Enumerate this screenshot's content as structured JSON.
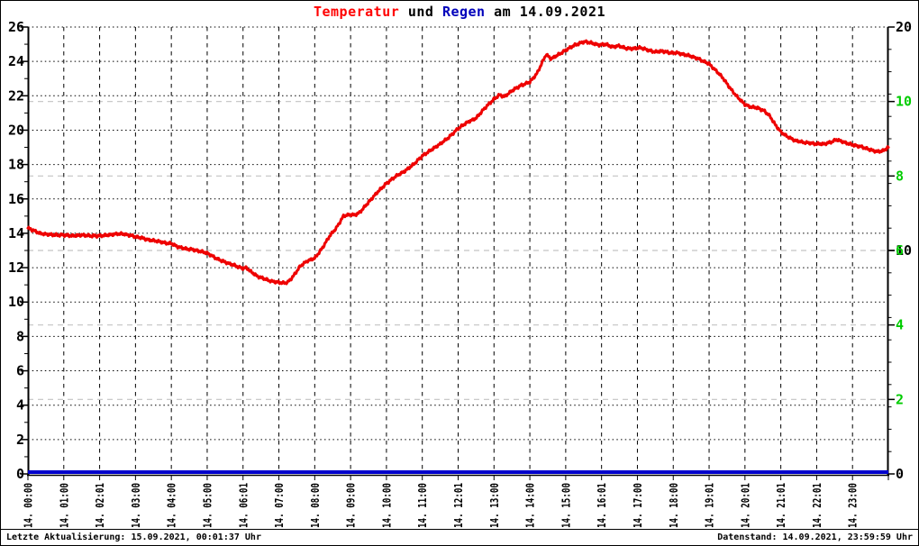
{
  "title": {
    "part_temperatur": "Temperatur",
    "part_und": "und",
    "part_regen": "Regen",
    "part_date": "am 14.09.2021"
  },
  "footer": {
    "last_update": "Letzte Aktualisierung: 15.09.2021, 00:01:37 Uhr",
    "data_state": "Datenstand: 14.09.2021, 23:59:59 Uhr"
  },
  "colors": {
    "temperature_line": "#ee0000",
    "rain_line": "#0000cc",
    "title_red": "#ff0000",
    "title_blue": "#0000bb",
    "green_axis_text": "#00cc00",
    "axis_black": "#000000",
    "grid_gray": "#c3c3c3",
    "background": "#ffffff"
  },
  "chart_data": {
    "type": "line",
    "title": "Temperatur und Regen am 14.09.2021",
    "grid": true,
    "x_axis": {
      "range_hours": [
        0,
        24
      ],
      "tick_labels": [
        "14. 00:00",
        "14. 01:00",
        "14. 02:01",
        "14. 03:00",
        "14. 04:00",
        "14. 05:00",
        "14. 06:01",
        "14. 07:00",
        "14. 08:00",
        "14. 09:00",
        "14. 10:00",
        "14. 11:00",
        "14. 12:01",
        "14. 13:00",
        "14. 14:00",
        "14. 15:00",
        "14. 16:01",
        "14. 17:00",
        "14. 18:00",
        "14. 19:01",
        "14. 20:01",
        "14. 21:01",
        "14. 22:01",
        "14. 23:00"
      ]
    },
    "left_axis": {
      "min": 0,
      "max": 26,
      "tick_step": 2,
      "tick_labels": [
        0,
        2,
        4,
        6,
        8,
        10,
        12,
        14,
        16,
        18,
        20,
        22,
        24,
        26
      ],
      "color": "#000000"
    },
    "right_axis_black": {
      "min": 0,
      "max": 20,
      "tick_labels": [
        0,
        10,
        20
      ],
      "minor_tick_step": 1,
      "color": "#000000"
    },
    "right_axis_green": {
      "min": 0,
      "max": 12,
      "tick_labels": [
        2,
        4,
        6,
        8,
        10
      ],
      "color": "#00cc00"
    },
    "series": [
      {
        "name": "Temperatur",
        "axis": "left",
        "color": "#ee0000",
        "points": [
          [
            0,
            14.3
          ],
          [
            0.17,
            14.15
          ],
          [
            0.33,
            14.0
          ],
          [
            0.5,
            13.95
          ],
          [
            0.75,
            13.9
          ],
          [
            1,
            13.9
          ],
          [
            1.25,
            13.85
          ],
          [
            1.5,
            13.9
          ],
          [
            1.75,
            13.85
          ],
          [
            2,
            13.85
          ],
          [
            2.25,
            13.9
          ],
          [
            2.5,
            13.97
          ],
          [
            2.7,
            13.95
          ],
          [
            2.9,
            13.85
          ],
          [
            3,
            13.8
          ],
          [
            3.2,
            13.72
          ],
          [
            3.4,
            13.6
          ],
          [
            3.6,
            13.55
          ],
          [
            3.8,
            13.45
          ],
          [
            4,
            13.4
          ],
          [
            4.2,
            13.2
          ],
          [
            4.4,
            13.1
          ],
          [
            4.6,
            13.05
          ],
          [
            4.8,
            12.95
          ],
          [
            5,
            12.85
          ],
          [
            5.2,
            12.6
          ],
          [
            5.4,
            12.4
          ],
          [
            5.6,
            12.25
          ],
          [
            5.8,
            12.1
          ],
          [
            6,
            11.95
          ],
          [
            6.1,
            12.0
          ],
          [
            6.2,
            11.8
          ],
          [
            6.4,
            11.5
          ],
          [
            6.6,
            11.35
          ],
          [
            6.8,
            11.2
          ],
          [
            7,
            11.15
          ],
          [
            7.1,
            11.1
          ],
          [
            7.25,
            11.15
          ],
          [
            7.4,
            11.5
          ],
          [
            7.6,
            12.1
          ],
          [
            7.8,
            12.4
          ],
          [
            8,
            12.55
          ],
          [
            8.2,
            13.1
          ],
          [
            8.4,
            13.8
          ],
          [
            8.6,
            14.3
          ],
          [
            8.8,
            15.0
          ],
          [
            9,
            15.1
          ],
          [
            9.1,
            15.05
          ],
          [
            9.25,
            15.2
          ],
          [
            9.5,
            15.8
          ],
          [
            9.75,
            16.4
          ],
          [
            10,
            16.9
          ],
          [
            10.25,
            17.3
          ],
          [
            10.5,
            17.6
          ],
          [
            10.75,
            18.0
          ],
          [
            11,
            18.5
          ],
          [
            11.25,
            18.85
          ],
          [
            11.5,
            19.2
          ],
          [
            11.75,
            19.6
          ],
          [
            12,
            20.1
          ],
          [
            12.25,
            20.45
          ],
          [
            12.5,
            20.7
          ],
          [
            12.75,
            21.3
          ],
          [
            13,
            21.8
          ],
          [
            13.15,
            22.05
          ],
          [
            13.3,
            21.95
          ],
          [
            13.5,
            22.3
          ],
          [
            13.75,
            22.6
          ],
          [
            14,
            22.8
          ],
          [
            14.2,
            23.3
          ],
          [
            14.45,
            24.4
          ],
          [
            14.6,
            24.15
          ],
          [
            14.8,
            24.4
          ],
          [
            15,
            24.65
          ],
          [
            15.2,
            24.9
          ],
          [
            15.45,
            25.1
          ],
          [
            15.55,
            25.15
          ],
          [
            15.75,
            25.05
          ],
          [
            15.95,
            24.95
          ],
          [
            16.1,
            25.0
          ],
          [
            16.3,
            24.85
          ],
          [
            16.5,
            24.9
          ],
          [
            16.7,
            24.75
          ],
          [
            16.9,
            24.75
          ],
          [
            17.1,
            24.8
          ],
          [
            17.3,
            24.65
          ],
          [
            17.5,
            24.55
          ],
          [
            17.7,
            24.6
          ],
          [
            17.9,
            24.5
          ],
          [
            18.1,
            24.5
          ],
          [
            18.3,
            24.4
          ],
          [
            18.5,
            24.3
          ],
          [
            18.7,
            24.15
          ],
          [
            18.9,
            23.95
          ],
          [
            19,
            23.85
          ],
          [
            19.2,
            23.45
          ],
          [
            19.4,
            23.0
          ],
          [
            19.6,
            22.4
          ],
          [
            19.8,
            21.9
          ],
          [
            20,
            21.5
          ],
          [
            20.15,
            21.35
          ],
          [
            20.35,
            21.3
          ],
          [
            20.55,
            21.1
          ],
          [
            20.7,
            20.8
          ],
          [
            20.85,
            20.3
          ],
          [
            21,
            19.9
          ],
          [
            21.2,
            19.6
          ],
          [
            21.4,
            19.4
          ],
          [
            21.6,
            19.3
          ],
          [
            21.8,
            19.25
          ],
          [
            22,
            19.2
          ],
          [
            22.2,
            19.2
          ],
          [
            22.4,
            19.3
          ],
          [
            22.55,
            19.45
          ],
          [
            22.7,
            19.35
          ],
          [
            22.9,
            19.2
          ],
          [
            23.1,
            19.1
          ],
          [
            23.3,
            19.0
          ],
          [
            23.5,
            18.85
          ],
          [
            23.7,
            18.75
          ],
          [
            23.85,
            18.8
          ],
          [
            24,
            19.0
          ]
        ]
      },
      {
        "name": "Regen",
        "axis": "right_black",
        "color": "#0000cc",
        "points": [
          [
            0,
            0
          ],
          [
            24,
            0
          ]
        ]
      }
    ]
  }
}
